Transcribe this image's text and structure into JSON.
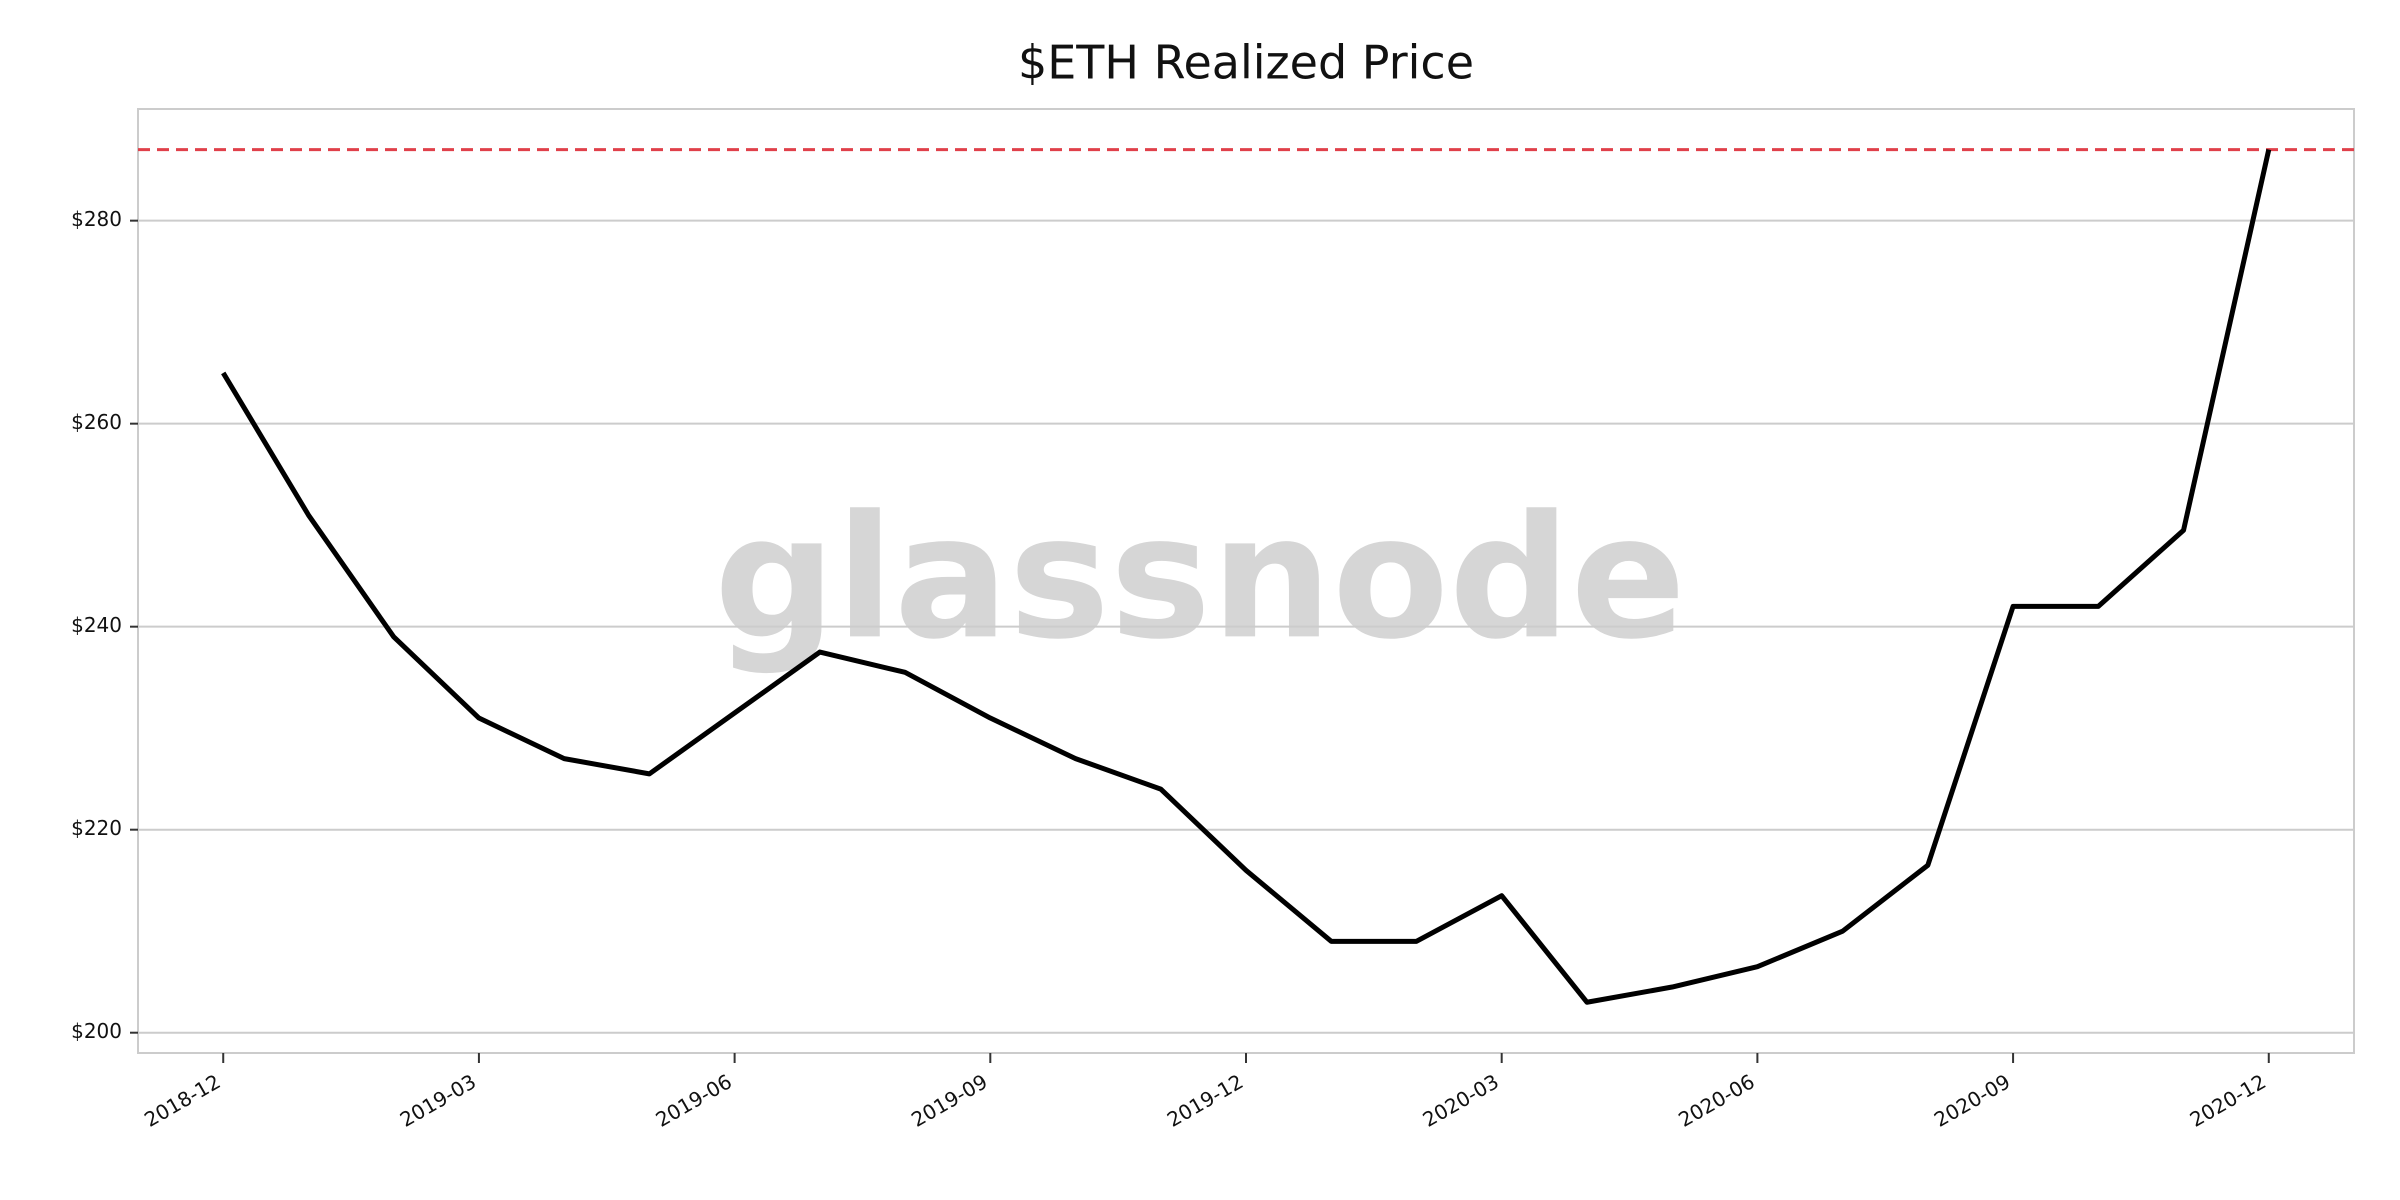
{
  "chart_data": {
    "type": "line",
    "title": "$ETH Realized Price",
    "watermark": "glassnode",
    "x": [
      "2018-12",
      "2019-01",
      "2019-02",
      "2019-03",
      "2019-04",
      "2019-05",
      "2019-06",
      "2019-07",
      "2019-08",
      "2019-09",
      "2019-10",
      "2019-11",
      "2019-12",
      "2020-01",
      "2020-02",
      "2020-03",
      "2020-04",
      "2020-05",
      "2020-06",
      "2020-07",
      "2020-08",
      "2020-09",
      "2020-10",
      "2020-11",
      "2020-12"
    ],
    "series": [
      {
        "name": "Realized Price",
        "color": "#000000",
        "values": [
          265,
          251,
          239,
          231,
          227,
          225.5,
          231.5,
          237.5,
          235.5,
          231,
          227,
          224,
          216,
          209,
          209,
          213.5,
          203,
          204.5,
          206.5,
          210,
          216.5,
          242,
          242,
          249.5,
          287
        ]
      }
    ],
    "hline": {
      "value": 287,
      "color": "#e0404a"
    },
    "xlim": [
      "2018-11",
      "2021-01"
    ],
    "xticks": [
      "2018-12",
      "2019-03",
      "2019-06",
      "2019-09",
      "2019-12",
      "2020-03",
      "2020-06",
      "2020-09",
      "2020-12"
    ],
    "ylim": [
      198,
      291
    ],
    "yticks": [
      {
        "value": 200,
        "label": "$200"
      },
      {
        "value": 220,
        "label": "$220"
      },
      {
        "value": 240,
        "label": "$240"
      },
      {
        "value": 260,
        "label": "$260"
      },
      {
        "value": 280,
        "label": "$280"
      }
    ],
    "grid": true
  }
}
